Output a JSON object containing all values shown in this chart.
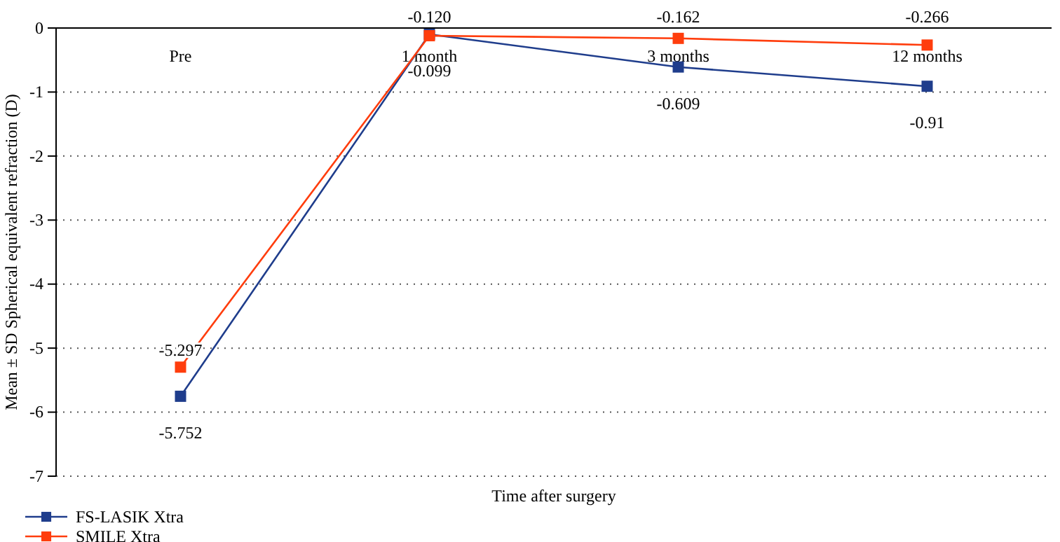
{
  "chart_data": {
    "type": "line",
    "xlabel": "Time after surgery",
    "ylabel": "Mean ± SD Spherical equivalent refraction (D)",
    "categories": [
      "Pre",
      "1 month",
      "3 months",
      "12 months"
    ],
    "series": [
      {
        "name": "FS-LASIK Xtra",
        "color": "#1f3d8c",
        "values": [
          -5.752,
          -0.099,
          -0.609,
          -0.91
        ],
        "value_labels": [
          "-5.752",
          "-0.099",
          "-0.609",
          "-0.91"
        ]
      },
      {
        "name": "SMILE Xtra",
        "color": "#ff3d0d",
        "values": [
          -5.297,
          -0.12,
          -0.162,
          -0.266
        ],
        "value_labels": [
          "-5.297",
          "-0.120",
          "-0.162",
          "-0.266"
        ]
      }
    ],
    "ylim": [
      -7,
      0
    ],
    "yticks": [
      0,
      -1,
      -2,
      -3,
      -4,
      -5,
      -6,
      -7
    ],
    "grid": "y",
    "legend": "bottom left",
    "marker": "square",
    "line_style": "solid"
  }
}
